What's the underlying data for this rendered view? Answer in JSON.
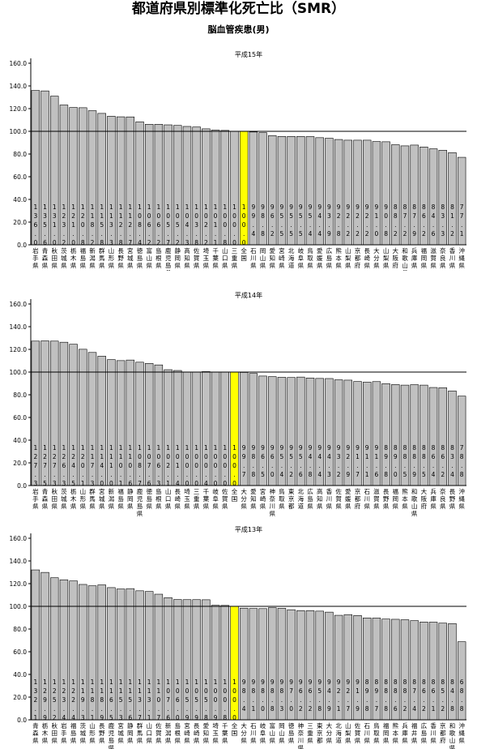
{
  "page": {
    "title": "都道府県別標準化死亡比（SMR）",
    "subtitle": "脳血管疾患(男)"
  },
  "colors": {
    "bar": "#c0c0c0",
    "highlight": "#ffff00",
    "stroke": "#000000",
    "reference_line": "#000000"
  },
  "chart_data": [
    {
      "type": "bar",
      "title": "平成15年",
      "ylim": [
        0,
        160
      ],
      "yticks": [
        "0.0",
        "20.0",
        "40.0",
        "60.0",
        "80.0",
        "100.0",
        "120.0",
        "140.0",
        "160.0"
      ],
      "reference_value": 100,
      "highlight_category": "全国",
      "categories": [
        "岩手県",
        "青森県",
        "秋田県",
        "茨城県",
        "栃木県",
        "福島県",
        "新潟県",
        "群馬県",
        "山形県",
        "長野県",
        "宮城県",
        "徳島県",
        "富山県",
        "島根県",
        "鹿児島県",
        "静岡県",
        "高知県",
        "佐賀県",
        "埼玉県",
        "千葉県",
        "山口県",
        "三重県",
        "全国",
        "石川県",
        "岡山県",
        "愛知県",
        "宮崎県",
        "北海道",
        "岐阜県",
        "鳥取県",
        "愛媛県",
        "広島県",
        "熊本県",
        "山梨県",
        "京都府",
        "長崎県",
        "大分県",
        "山梨県",
        "大阪府",
        "和歌山県",
        "兵庫県",
        "福岡県",
        "滋賀県",
        "奈良県",
        "香川県",
        "沖縄県"
      ],
      "value_labels": [
        "136.0",
        "135.6",
        "131.0",
        "123.2",
        "121.0",
        "120.8",
        "118.2",
        "115.8",
        "113.3",
        "112.8",
        "112.7",
        "108.4",
        "106.2",
        "106.2",
        "105.7",
        "105.2",
        "104.3",
        "103.8",
        "102.2",
        "101.1",
        "100.8",
        "100.0",
        "100.0",
        "99.4",
        "98.8",
        "96.2",
        "95.5",
        "95.5",
        "95.5",
        "95.4",
        "94.4",
        "93.9",
        "92.8",
        "92.2",
        "92.2",
        "92.2",
        "91.0",
        "90.8",
        "88.2",
        "87.2",
        "87.9",
        "86.2",
        "84.6",
        "83.3",
        "81.2",
        "77.1"
      ],
      "values": [
        136.0,
        135.6,
        131.0,
        123.2,
        121.0,
        120.8,
        118.2,
        115.8,
        113.3,
        112.8,
        112.7,
        108.4,
        106.2,
        106.2,
        105.7,
        105.2,
        104.3,
        103.8,
        102.2,
        101.1,
        100.8,
        100.0,
        100.0,
        99.4,
        98.8,
        96.2,
        95.5,
        95.5,
        95.5,
        95.4,
        94.4,
        93.9,
        92.8,
        92.2,
        92.2,
        92.2,
        91.0,
        90.8,
        88.2,
        87.2,
        87.9,
        86.2,
        84.6,
        83.3,
        81.2,
        77.1
      ]
    },
    {
      "type": "bar",
      "title": "平成14年",
      "ylim": [
        0,
        160
      ],
      "yticks": [
        "0.0",
        "20.0",
        "40.0",
        "60.0",
        "80.0",
        "100.0",
        "120.0",
        "140.0",
        "160.0"
      ],
      "reference_value": 100,
      "highlight_category": "全国",
      "categories": [
        "岩手県",
        "青森県",
        "秋田県",
        "茨城県",
        "栃木県",
        "山形県",
        "群馬県",
        "宮城県",
        "新潟県",
        "福島県",
        "静岡県",
        "鹿児島県",
        "徳島県",
        "島根県",
        "山口県",
        "長崎県",
        "埼玉県",
        "三重県",
        "千葉県",
        "岐阜県",
        "佐賀県",
        "全国",
        "大分県",
        "愛知県",
        "宮崎県",
        "神奈川県",
        "鳥取県",
        "東京都",
        "北海道",
        "広島県",
        "高知県",
        "香川県",
        "佐賀県",
        "愛媛県",
        "京都府",
        "石川県",
        "滋賀県",
        "長野県",
        "福岡県",
        "熊本県",
        "和歌山県",
        "大阪府",
        "兵庫県",
        "奈良県",
        "長野県",
        "沖縄県"
      ],
      "value_labels": [
        "127.3",
        "127.5",
        "127.3",
        "126.3",
        "124.5",
        "120.1",
        "117.3",
        "114.0",
        "111.0",
        "110.1",
        "110.6",
        "108.7",
        "107.6",
        "106.3",
        "102.1",
        "101.4",
        "100.0",
        "100.0",
        "100.4",
        "100.0",
        "100.0",
        "100.0",
        "99.7",
        "98.8",
        "96.5",
        "96.0",
        "95.4",
        "95.2",
        "95.6",
        "94.8",
        "94.4",
        "94.3",
        "93.2",
        "92.9",
        "91.7",
        "91.1",
        "91.6",
        "89.8",
        "89.0",
        "88.5",
        "88.9",
        "88.5",
        "86.4",
        "86.2",
        "83.4",
        "78.8"
      ],
      "values": [
        127.3,
        127.5,
        127.3,
        126.3,
        124.5,
        120.1,
        117.3,
        114.0,
        111.0,
        110.1,
        110.6,
        108.7,
        107.6,
        106.3,
        102.1,
        101.4,
        100.0,
        100.0,
        100.4,
        100.0,
        100.0,
        100.0,
        99.7,
        98.8,
        96.5,
        96.0,
        95.4,
        95.2,
        95.6,
        94.8,
        94.4,
        94.3,
        93.2,
        92.9,
        91.7,
        91.1,
        91.6,
        89.8,
        89.0,
        88.5,
        88.9,
        88.5,
        86.4,
        86.2,
        83.4,
        78.8
      ]
    },
    {
      "type": "bar",
      "title": "平成13年",
      "ylim": [
        0,
        160
      ],
      "yticks": [
        "0.0",
        "20.0",
        "40.0",
        "60.0",
        "80.0",
        "100.0",
        "120.0",
        "140.0",
        "160.0"
      ],
      "reference_value": 100,
      "highlight_category": "全国",
      "categories": [
        "青森県",
        "栃木県",
        "秋田県",
        "岩手県",
        "福島県",
        "茨城県",
        "山形県",
        "長野県",
        "鹿児島県",
        "宮城県",
        "静岡県",
        "群馬県",
        "山口県",
        "佐賀県",
        "新潟県",
        "島根県",
        "宮崎県",
        "長崎県",
        "愛知県",
        "埼玉県",
        "千葉県",
        "全国",
        "大分県",
        "石川県",
        "岐阜県",
        "富山県",
        "岡山県",
        "徳島県",
        "神奈川県",
        "三重県",
        "東京都",
        "大分県",
        "北海道",
        "山梨県",
        "佐賀県",
        "石川県",
        "鳥取県",
        "福岡県",
        "熊本県",
        "兵庫県",
        "福井県",
        "広島県",
        "香川県",
        "京都府",
        "和歌山県",
        "沖縄県"
      ],
      "value_labels": [
        "132.1",
        "129.9",
        "125.2",
        "123.4",
        "122.4",
        "119.3",
        "118.1",
        "118.9",
        "116.5",
        "115.3",
        "115.6",
        "113.7",
        "113.1",
        "110.7",
        "107.6",
        "106.0",
        "105.9",
        "105.9",
        "105.8",
        "100.9",
        "100.8",
        "100.0",
        "98.4",
        "98.1",
        "98.0",
        "98.8",
        "98.3",
        "97.0",
        "96.2",
        "96.2",
        "95.8",
        "94.9",
        "92.1",
        "92.7",
        "91.9",
        "89.8",
        "89.7",
        "88.8",
        "88.6",
        "88.2",
        "87.4",
        "86.2",
        "86.1",
        "85.2",
        "84.8",
        "68.8"
      ],
      "values": [
        132.1,
        129.9,
        125.2,
        123.4,
        122.4,
        119.3,
        118.1,
        118.9,
        116.5,
        115.3,
        115.6,
        113.7,
        113.1,
        110.7,
        107.6,
        106.0,
        105.9,
        105.9,
        105.8,
        100.9,
        100.8,
        100.0,
        98.4,
        98.1,
        98.0,
        98.8,
        98.3,
        97.0,
        96.2,
        96.2,
        95.8,
        94.9,
        92.1,
        92.7,
        91.9,
        89.8,
        89.7,
        88.8,
        88.6,
        88.2,
        87.4,
        86.2,
        86.1,
        85.2,
        84.8,
        68.8
      ]
    }
  ]
}
